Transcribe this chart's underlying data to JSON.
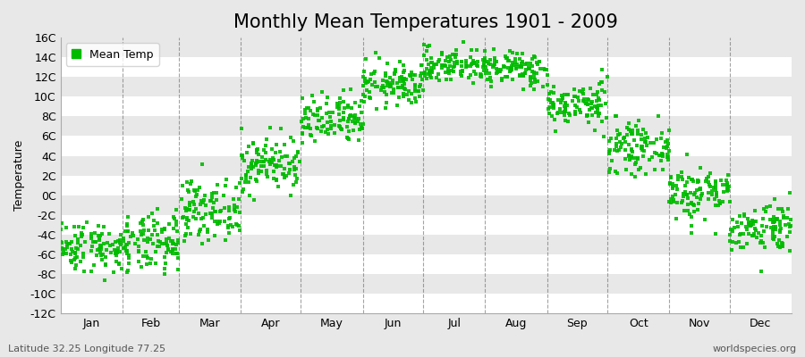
{
  "title": "Monthly Mean Temperatures 1901 - 2009",
  "ylabel": "Temperature",
  "dot_color": "#00bb00",
  "background_color": "#e8e8e8",
  "band_color_light": "#f0f0f0",
  "band_color_dark": "#e0e0e0",
  "grid_color": "#666666",
  "ylim": [
    -12,
    16
  ],
  "yticks": [
    -12,
    -10,
    -8,
    -6,
    -4,
    -2,
    0,
    2,
    4,
    6,
    8,
    10,
    12,
    14,
    16
  ],
  "ytick_labels": [
    "-12C",
    "-10C",
    "-8C",
    "-6C",
    "-4C",
    "-2C",
    "0C",
    "2C",
    "4C",
    "6C",
    "8C",
    "10C",
    "12C",
    "14C",
    "16C"
  ],
  "months": [
    "Jan",
    "Feb",
    "Mar",
    "Apr",
    "May",
    "Jun",
    "Jul",
    "Aug",
    "Sep",
    "Oct",
    "Nov",
    "Dec"
  ],
  "month_days": [
    31,
    28,
    31,
    30,
    31,
    30,
    31,
    31,
    30,
    31,
    30,
    31
  ],
  "monthly_means": [
    -5.2,
    -5.0,
    -1.5,
    3.2,
    7.5,
    11.2,
    13.2,
    12.8,
    9.2,
    4.8,
    0.3,
    -3.2
  ],
  "monthly_stds": [
    1.3,
    1.5,
    1.5,
    1.4,
    1.3,
    1.1,
    0.9,
    0.9,
    1.1,
    1.2,
    1.4,
    1.3
  ],
  "n_years": 109,
  "footer_left": "Latitude 32.25 Longitude 77.25",
  "footer_right": "worldspecies.org",
  "legend_label": "Mean Temp",
  "title_fontsize": 15,
  "label_fontsize": 9,
  "tick_fontsize": 9,
  "footer_fontsize": 8,
  "dot_size": 5,
  "dot_alpha": 0.9
}
